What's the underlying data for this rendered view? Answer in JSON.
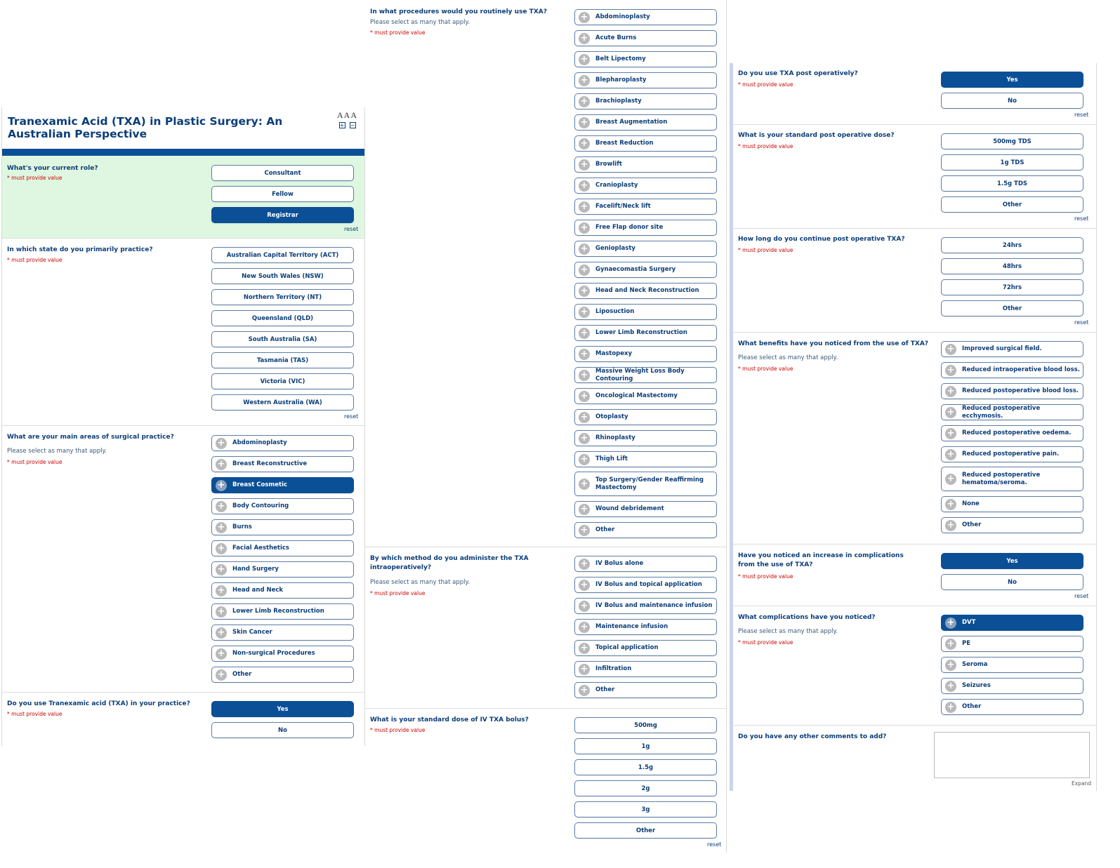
{
  "survey": {
    "title": "Tranexamic Acid (TXA) in Plastic Surgery: An Australian Perspective",
    "font_size_label": "AAA",
    "zoom_in": "+",
    "zoom_out": "−"
  },
  "common": {
    "required": "* must provide value",
    "reset": "reset",
    "multi_hint": "Please select as many that apply.",
    "expand": "Expand"
  },
  "q_role": {
    "label": "What's your current role?",
    "options": [
      "Consultant",
      "Fellow",
      "Registrar"
    ],
    "selected": "Registrar"
  },
  "q_state": {
    "label": "In which state do you primarily practice?",
    "options": [
      "Australian Capital Territory (ACT)",
      "New South Wales (NSW)",
      "Northern Territory (NT)",
      "Queensland (QLD)",
      "South Australia (SA)",
      "Tasmania (TAS)",
      "Victoria (VIC)",
      "Western Australia (WA)"
    ]
  },
  "q_areas": {
    "label": "What are your main areas of surgical practice?",
    "options": [
      "Abdominoplasty",
      "Breast Reconstructive",
      "Breast Cosmetic",
      "Body Contouring",
      "Burns",
      "Facial Aesthetics",
      "Hand Surgery",
      "Head and Neck",
      "Lower Limb Reconstruction",
      "Skin Cancer",
      "Non-surgical Procedures",
      "Other"
    ],
    "selected": [
      "Breast Cosmetic"
    ]
  },
  "q_use_txa": {
    "label": "Do you use Tranexamic acid (TXA) in your practice?",
    "options": [
      "Yes",
      "No"
    ],
    "selected": "Yes"
  },
  "q_procedures": {
    "label": "In what procedures would you routinely use TXA?",
    "options": [
      "Abdominoplasty",
      "Acute Burns",
      "Belt Lipectomy",
      "Blepharoplasty",
      "Brachioplasty",
      "Breast Augmentation",
      "Breast Reduction",
      "Browlift",
      "Cranioplasty",
      "Facelift/Neck lift",
      "Free Flap donor site",
      "Genioplasty",
      "Gynaecomastia Surgery",
      "Head and Neck Reconstruction",
      "Liposuction",
      "Lower Limb Reconstruction",
      "Mastopexy",
      "Massive Weight Loss Body Contouring",
      "Oncological Mastectomy",
      "Otoplasty",
      "Rhinoplasty",
      "Thigh Lift",
      "Top Surgery/Gender Reaffirming Mastectomy",
      "Wound debridement",
      "Other"
    ]
  },
  "q_method": {
    "label": "By which method do you administer the TXA intraoperatively?",
    "options": [
      "IV Bolus alone",
      "IV Bolus and topical application",
      "IV Bolus and maintenance infusion",
      "Maintenance infusion",
      "Topical application",
      "Infiltration",
      "Other"
    ]
  },
  "q_bolus_dose": {
    "label": "What is your standard dose of IV TXA bolus?",
    "options": [
      "500mg",
      "1g",
      "1.5g",
      "2g",
      "3g",
      "Other"
    ]
  },
  "q_postop": {
    "label": "Do you use TXA post operatively?",
    "options": [
      "Yes",
      "No"
    ],
    "selected": "Yes"
  },
  "q_postop_dose": {
    "label": "What is your standard post operative dose?",
    "options": [
      "500mg TDS",
      "1g TDS",
      "1.5g TDS",
      "Other"
    ]
  },
  "q_postop_duration": {
    "label": "How long do you continue post operative TXA?",
    "options": [
      "24hrs",
      "48hrs",
      "72hrs",
      "Other"
    ]
  },
  "q_benefits": {
    "label": "What benefits have you noticed from the use of TXA?",
    "options": [
      "Improved surgical field.",
      "Reduced intraoperative blood loss.",
      "Reduced postoperative blood loss.",
      "Reduced postoperative ecchymosis.",
      "Reduced postoperative oedema.",
      "Reduced postoperative pain.",
      "Reduced postoperative hematoma/seroma.",
      "None",
      "Other"
    ]
  },
  "q_complications_increase": {
    "label": "Have you noticed an increase in complications from the use of TXA?",
    "options": [
      "Yes",
      "No"
    ],
    "selected": "Yes"
  },
  "q_complications": {
    "label": "What complications have you noticed?",
    "options": [
      "DVT",
      "PE",
      "Seroma",
      "Seizures",
      "Other"
    ],
    "selected": [
      "DVT"
    ]
  },
  "q_comments": {
    "label": "Do you have any other comments to add?",
    "value": ""
  }
}
